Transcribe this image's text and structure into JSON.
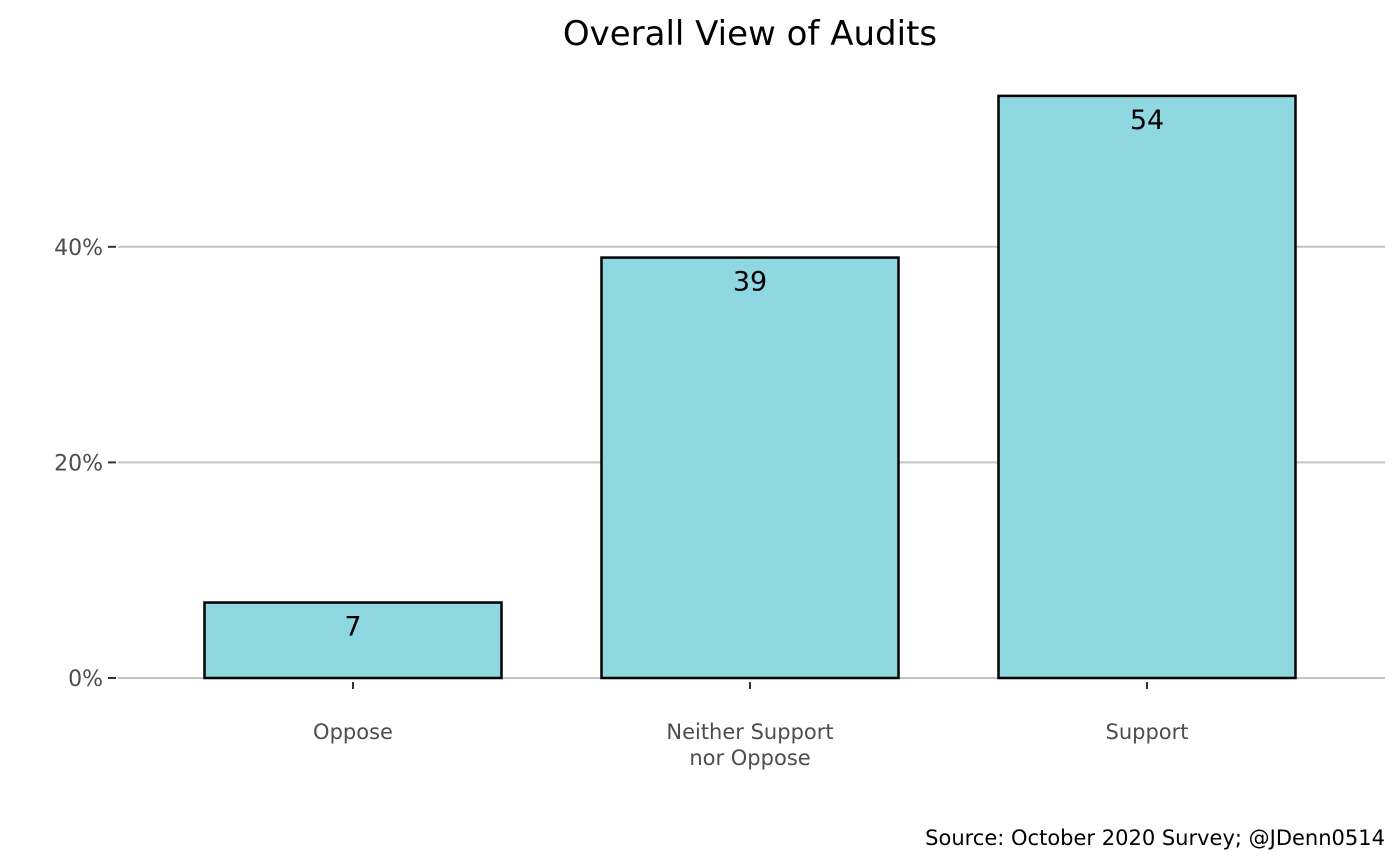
{
  "chart_data": {
    "type": "bar",
    "title": "Overall View of Audits",
    "categories": [
      [
        "Oppose"
      ],
      [
        "Neither Support",
        "nor Oppose"
      ],
      [
        "Support"
      ]
    ],
    "values": [
      7,
      39,
      54
    ],
    "data_labels": [
      "7",
      "39",
      "54"
    ],
    "y_ticks": [
      0,
      20,
      40
    ],
    "y_tick_labels": [
      "0%",
      "20%",
      "40%"
    ],
    "ylim": [
      0,
      56
    ],
    "grid": "horizontal-major",
    "caption": "Source: October 2020 Survey; @JDenn0514",
    "colors": {
      "bar_fill": "#8fd7e1",
      "bar_stroke": "#000000",
      "grid": "#c3c3c3",
      "axis_text": "#4d4d4d"
    }
  }
}
